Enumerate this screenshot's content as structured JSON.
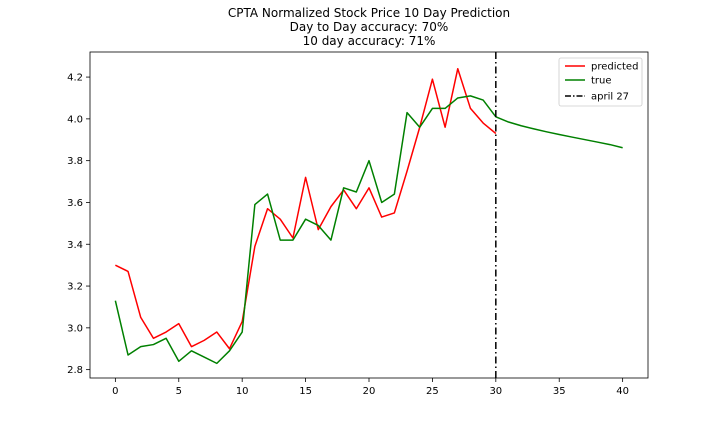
{
  "chart_data": {
    "type": "line",
    "title_lines": [
      "CPTA Normalized Stock Price 10 Day Prediction",
      "Day to Day accuracy: 70%",
      "10 day accuracy: 71%"
    ],
    "xlabel": "",
    "ylabel": "",
    "xlim": [
      -2,
      42
    ],
    "ylim": [
      2.76,
      4.32
    ],
    "xticks": [
      0,
      5,
      10,
      15,
      20,
      25,
      30,
      35,
      40
    ],
    "yticks": [
      2.8,
      3.0,
      3.2,
      3.4,
      3.6,
      3.8,
      4.0,
      4.2
    ],
    "ytick_labels": [
      "2.8",
      "3.0",
      "3.2",
      "3.4",
      "3.6",
      "3.8",
      "4.0",
      "4.2"
    ],
    "grid": false,
    "legend_position": "top-right",
    "series": [
      {
        "name": "predicted",
        "color": "#ff0000",
        "x": [
          0,
          1,
          2,
          3,
          4,
          5,
          6,
          7,
          8,
          9,
          10,
          11,
          12,
          13,
          14,
          15,
          16,
          17,
          18,
          19,
          20,
          21,
          22,
          23,
          24,
          25,
          26,
          27,
          28,
          29,
          30
        ],
        "values": [
          3.3,
          3.27,
          3.05,
          2.95,
          2.98,
          3.02,
          2.91,
          2.94,
          2.98,
          2.9,
          3.03,
          3.39,
          3.57,
          3.52,
          3.43,
          3.72,
          3.47,
          3.58,
          3.66,
          3.57,
          3.67,
          3.53,
          3.55,
          3.75,
          3.96,
          4.19,
          3.96,
          4.24,
          4.05,
          3.98,
          3.93
        ]
      },
      {
        "name": "true",
        "color": "#008000",
        "x": [
          0,
          1,
          2,
          3,
          4,
          5,
          6,
          7,
          8,
          9,
          10,
          11,
          12,
          13,
          14,
          15,
          16,
          17,
          18,
          19,
          20,
          21,
          22,
          23,
          24,
          25,
          26,
          27,
          28,
          29,
          30,
          31,
          32,
          33,
          34,
          35,
          36,
          37,
          38,
          39,
          40
        ],
        "values": [
          3.13,
          2.87,
          2.91,
          2.92,
          2.95,
          2.84,
          2.89,
          2.86,
          2.83,
          2.89,
          2.98,
          3.59,
          3.64,
          3.42,
          3.42,
          3.52,
          3.49,
          3.42,
          3.67,
          3.65,
          3.8,
          3.6,
          3.64,
          4.03,
          3.96,
          4.05,
          4.05,
          4.1,
          4.11,
          4.09,
          4.01,
          3.985,
          3.967,
          3.952,
          3.938,
          3.925,
          3.913,
          3.901,
          3.889,
          3.877,
          3.862
        ]
      }
    ],
    "vline": {
      "name": "april 27",
      "x": 30,
      "color": "#000000",
      "style": "dashdot"
    }
  }
}
